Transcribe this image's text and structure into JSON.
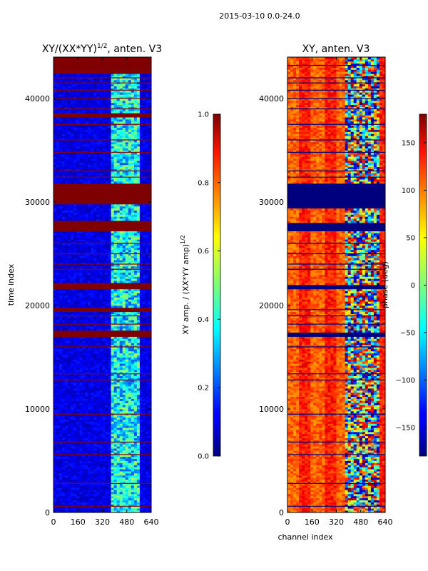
{
  "suptitle": "2015-03-10 0.0-24.0",
  "chart_data": [
    {
      "type": "heatmap",
      "title_prefix": "XY/(XX*YY)",
      "title_exponent": "1/2",
      "title_suffix": ", anten. V3",
      "xlabel": "",
      "ylabel": "time index",
      "xlim": [
        0,
        640
      ],
      "ylim": [
        0,
        44000
      ],
      "xticks": [
        0,
        160,
        320,
        480,
        640
      ],
      "xtick_labels": [
        "0",
        "160",
        "320",
        "480",
        "640"
      ],
      "yticks": [
        0,
        10000,
        20000,
        30000,
        40000
      ],
      "ytick_labels": [
        "0",
        "10000",
        "20000",
        "30000",
        "40000"
      ],
      "colormap": "jet",
      "colorbar": {
        "label_prefix": "XY amp. / (XX*YY amp)",
        "label_exponent": "1/2",
        "range": [
          0.0,
          1.0
        ],
        "ticks": [
          0.0,
          0.2,
          0.4,
          0.6,
          0.8,
          1.0
        ],
        "tick_labels": [
          "0.0",
          "0.2",
          "0.4",
          "0.6",
          "0.8",
          "1.0"
        ]
      },
      "saturated_time_bands": [
        [
          27200,
          28200
        ],
        [
          29800,
          31800
        ],
        [
          21600,
          22200
        ],
        [
          17000,
          17600
        ],
        [
          19400,
          19800
        ],
        [
          42400,
          44000
        ],
        [
          38200,
          38600
        ]
      ],
      "flagged_lines": [
        600,
        2800,
        5600,
        6800,
        9500,
        12800,
        13400,
        16000,
        18200,
        19000,
        23500,
        24000,
        25000,
        26000,
        32400,
        33000,
        34800,
        36000,
        37500,
        39000,
        40000,
        40800,
        41500,
        42000
      ]
    },
    {
      "type": "heatmap",
      "title": "XY, anten. V3",
      "xlabel": "channel index",
      "ylabel": "",
      "xlim": [
        0,
        640
      ],
      "ylim": [
        0,
        44000
      ],
      "xticks": [
        0,
        160,
        320,
        480,
        640
      ],
      "xtick_labels": [
        "0",
        "160",
        "320",
        "480",
        "640"
      ],
      "yticks": [
        0,
        10000,
        20000,
        30000,
        40000
      ],
      "ytick_labels": [
        "0",
        "10000",
        "20000",
        "30000",
        "40000"
      ],
      "colormap": "jet",
      "colorbar": {
        "label": "phase (deg)",
        "range": [
          -180,
          180
        ],
        "ticks": [
          -150,
          -100,
          -50,
          0,
          50,
          100,
          150
        ],
        "tick_labels": [
          "−150",
          "−100",
          "−50",
          "0",
          "50",
          "100",
          "150"
        ]
      },
      "blank_time_bands": [
        [
          29400,
          31800
        ],
        [
          27200,
          28000
        ],
        [
          21600,
          22000
        ],
        [
          17000,
          17400
        ]
      ],
      "flagged_lines": [
        600,
        2800,
        5600,
        6800,
        9500,
        12800,
        13400,
        16000,
        18200,
        19000,
        19600,
        23500,
        24000,
        25000,
        26000,
        32400,
        33000,
        34800,
        36000,
        37500,
        39000,
        40000,
        40800,
        41500,
        42000,
        43200
      ]
    }
  ]
}
